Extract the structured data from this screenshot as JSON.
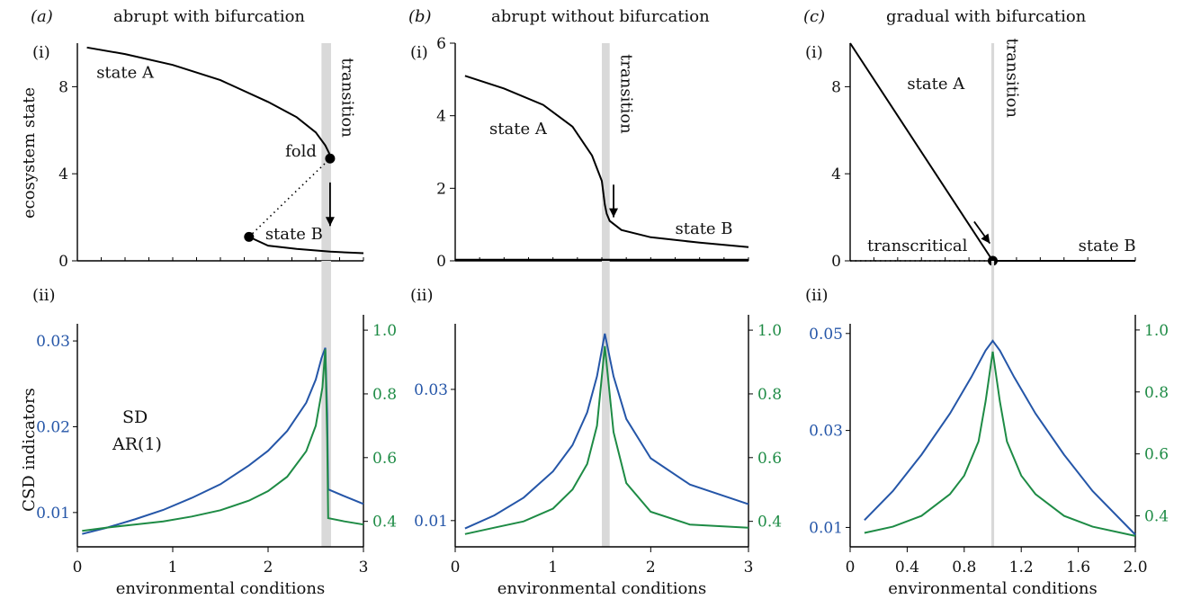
{
  "colors": {
    "sd": "#2556a8",
    "ar1": "#1e8b45",
    "state": "#000000",
    "band": "#d9d9d9"
  },
  "shared_labels": {
    "ylabel_top": "ecosystem state",
    "ylabel_bottom": "CSD indicators",
    "sd_legend": "SD",
    "ar1_legend": "AR(1)"
  },
  "chart_data": [
    {
      "id": "a-i",
      "type": "line",
      "panel_letter": "a",
      "title": "abrupt with bifurcation",
      "sublabel": "(i)",
      "xlim": [
        0,
        3
      ],
      "ylim": [
        0,
        10
      ],
      "yticks": [
        0,
        4,
        8
      ],
      "transition_band": [
        2.56,
        2.66
      ],
      "series": [
        {
          "style": "solid",
          "x": [
            0.1,
            0.5,
            1.0,
            1.5,
            2.0,
            2.3,
            2.5,
            2.6,
            2.64,
            2.65
          ],
          "y": [
            9.8,
            9.5,
            9.0,
            8.3,
            7.3,
            6.6,
            5.9,
            5.3,
            4.95,
            4.7
          ]
        },
        {
          "style": "dotted",
          "x": [
            1.8,
            2.2,
            2.65
          ],
          "y": [
            1.1,
            2.8,
            4.7
          ]
        },
        {
          "style": "solid",
          "x": [
            1.8,
            2.0,
            2.3,
            2.65,
            3.0
          ],
          "y": [
            1.1,
            0.7,
            0.55,
            0.42,
            0.35
          ]
        }
      ],
      "points": [
        {
          "x": 2.65,
          "y": 4.7
        },
        {
          "x": 1.8,
          "y": 1.1
        }
      ],
      "annotations": [
        {
          "text": "state A",
          "x": 0.2,
          "y": 8.4
        },
        {
          "text": "fold",
          "x": 2.18,
          "y": 4.8
        },
        {
          "text": "state B",
          "x": 1.97,
          "y": 1.0
        },
        {
          "text": "transition",
          "x": 2.78,
          "y": 7.5,
          "rotate": true
        }
      ],
      "arrow": {
        "x1": 2.65,
        "y1": 3.6,
        "x2": 2.65,
        "y2": 1.6
      }
    },
    {
      "id": "b-i",
      "type": "line",
      "panel_letter": "b",
      "title": "abrupt without bifurcation",
      "sublabel": "(i)",
      "xlim": [
        0,
        3
      ],
      "ylim": [
        0,
        6
      ],
      "yticks": [
        0,
        2,
        4,
        6
      ],
      "transition_band": [
        1.5,
        1.58
      ],
      "series": [
        {
          "style": "solid",
          "x": [
            0.1,
            0.5,
            0.9,
            1.2,
            1.4,
            1.5,
            1.53,
            1.55,
            1.58,
            1.7,
            2.0,
            2.5,
            3.0
          ],
          "y": [
            5.1,
            4.75,
            4.3,
            3.7,
            2.9,
            2.2,
            1.55,
            1.3,
            1.1,
            0.85,
            0.65,
            0.5,
            0.38
          ]
        },
        {
          "style": "solid",
          "x": [
            0,
            3
          ],
          "y": [
            0.03,
            0.03
          ]
        }
      ],
      "points": [],
      "annotations": [
        {
          "text": "state A",
          "x": 0.35,
          "y": 3.5
        },
        {
          "text": "state B",
          "x": 2.25,
          "y": 0.75
        },
        {
          "text": "transition",
          "x": 1.7,
          "y": 4.6,
          "rotate": true
        }
      ],
      "arrow": {
        "x1": 1.62,
        "y1": 2.1,
        "x2": 1.62,
        "y2": 1.2
      }
    },
    {
      "id": "c-i",
      "type": "line",
      "panel_letter": "c",
      "title": "gradual with bifurcation",
      "sublabel": "(i)",
      "xlim": [
        0,
        2
      ],
      "ylim": [
        0,
        10
      ],
      "yticks": [
        0,
        4,
        8
      ],
      "transition_band": [
        0.99,
        1.01
      ],
      "series": [
        {
          "style": "solid",
          "x": [
            0,
            1.0
          ],
          "y": [
            10,
            0
          ]
        },
        {
          "style": "solid",
          "x": [
            1.0,
            2.0
          ],
          "y": [
            0,
            0
          ]
        },
        {
          "style": "dotted",
          "x": [
            0,
            1.0
          ],
          "y": [
            0,
            0
          ]
        }
      ],
      "points": [
        {
          "x": 1.0,
          "y": 0
        }
      ],
      "annotations": [
        {
          "text": "state A",
          "x": 0.4,
          "y": 7.9
        },
        {
          "text": "transcritical",
          "x": 0.12,
          "y": 0.45
        },
        {
          "text": "state B",
          "x": 1.6,
          "y": 0.45
        },
        {
          "text": "transition",
          "x": 1.1,
          "y": 8.4,
          "rotate": true
        }
      ],
      "arrow": {
        "x1": 0.87,
        "y1": 1.8,
        "x2": 0.98,
        "y2": 0.8
      }
    },
    {
      "id": "a-ii",
      "type": "line",
      "sublabel": "(ii)",
      "xlim": [
        0,
        3
      ],
      "xticks": [
        0,
        1,
        2,
        3
      ],
      "xlabel": "environmental conditions",
      "ylim_left": [
        0.006,
        0.032
      ],
      "ylim_right": [
        0.32,
        1.02
      ],
      "yticks_left": [
        0.01,
        0.02,
        0.03
      ],
      "yticks_right": [
        0.4,
        0.6,
        0.8,
        1.0
      ],
      "transition_band": [
        2.56,
        2.66
      ],
      "series": [
        {
          "name": "SD",
          "axis": "left",
          "x": [
            0.05,
            0.3,
            0.6,
            0.9,
            1.2,
            1.5,
            1.8,
            2.0,
            2.2,
            2.4,
            2.5,
            2.56,
            2.6,
            2.62,
            2.63,
            2.8,
            3.0
          ],
          "y": [
            0.0075,
            0.0082,
            0.0092,
            0.0103,
            0.0117,
            0.0133,
            0.0155,
            0.0172,
            0.0195,
            0.0228,
            0.0255,
            0.028,
            0.0292,
            0.0215,
            0.0127,
            0.0119,
            0.011
          ]
        },
        {
          "name": "AR(1)",
          "axis": "right",
          "x": [
            0.05,
            0.3,
            0.6,
            0.9,
            1.2,
            1.5,
            1.8,
            2.0,
            2.2,
            2.4,
            2.5,
            2.57,
            2.6,
            2.62,
            2.63,
            2.8,
            3.0
          ],
          "y": [
            0.37,
            0.38,
            0.39,
            0.4,
            0.415,
            0.435,
            0.465,
            0.495,
            0.54,
            0.62,
            0.7,
            0.82,
            0.94,
            0.66,
            0.41,
            0.4,
            0.39
          ]
        }
      ]
    },
    {
      "id": "b-ii",
      "type": "line",
      "sublabel": "(ii)",
      "xlim": [
        0,
        3
      ],
      "xticks": [
        0,
        1,
        2,
        3
      ],
      "xlabel": "environmental conditions",
      "ylim_left": [
        0.006,
        0.04
      ],
      "ylim_right": [
        0.32,
        1.02
      ],
      "yticks_left": [
        0.01,
        0.03
      ],
      "yticks_right": [
        0.4,
        0.6,
        0.8,
        1.0
      ],
      "transition_band": [
        1.5,
        1.58
      ],
      "series": [
        {
          "name": "SD",
          "axis": "left",
          "x": [
            0.1,
            0.4,
            0.7,
            1.0,
            1.2,
            1.35,
            1.45,
            1.53,
            1.62,
            1.75,
            2.0,
            2.4,
            3.0
          ],
          "y": [
            0.0088,
            0.0108,
            0.0135,
            0.0175,
            0.0215,
            0.0265,
            0.032,
            0.0385,
            0.032,
            0.0255,
            0.0195,
            0.0155,
            0.0125
          ]
        },
        {
          "name": "AR(1)",
          "axis": "right",
          "x": [
            0.1,
            0.4,
            0.7,
            1.0,
            1.2,
            1.35,
            1.45,
            1.53,
            1.62,
            1.75,
            2.0,
            2.4,
            3.0
          ],
          "y": [
            0.36,
            0.38,
            0.4,
            0.44,
            0.5,
            0.58,
            0.7,
            0.95,
            0.68,
            0.52,
            0.43,
            0.39,
            0.38
          ]
        }
      ]
    },
    {
      "id": "c-ii",
      "type": "line",
      "sublabel": "(ii)",
      "xlim": [
        0,
        2
      ],
      "xticks": [
        0,
        0.4,
        0.8,
        1.2,
        1.6,
        2.0
      ],
      "xtick_labels": [
        "0",
        "0.4",
        "0.8",
        "1.2",
        "1.6",
        "2.0"
      ],
      "xlabel": "environmental conditions",
      "ylim_left": [
        0.006,
        0.052
      ],
      "ylim_right": [
        0.3,
        1.02
      ],
      "yticks_left": [
        0.01,
        0.03,
        0.05
      ],
      "yticks_right": [
        0.4,
        0.6,
        0.8,
        1.0
      ],
      "transition_band": [
        0.99,
        1.01
      ],
      "series": [
        {
          "name": "SD",
          "axis": "left",
          "x": [
            0.1,
            0.3,
            0.5,
            0.7,
            0.85,
            0.95,
            1.0,
            1.05,
            1.15,
            1.3,
            1.5,
            1.7,
            2.0
          ],
          "y": [
            0.0115,
            0.0175,
            0.025,
            0.0335,
            0.041,
            0.0465,
            0.0485,
            0.0465,
            0.041,
            0.0335,
            0.025,
            0.0175,
            0.0085
          ]
        },
        {
          "name": "AR(1)",
          "axis": "right",
          "x": [
            0.1,
            0.3,
            0.5,
            0.7,
            0.8,
            0.9,
            0.95,
            1.0,
            1.05,
            1.1,
            1.2,
            1.3,
            1.5,
            1.7,
            2.0
          ],
          "y": [
            0.345,
            0.365,
            0.4,
            0.47,
            0.53,
            0.64,
            0.77,
            0.93,
            0.77,
            0.64,
            0.53,
            0.47,
            0.4,
            0.365,
            0.335
          ]
        }
      ]
    }
  ]
}
